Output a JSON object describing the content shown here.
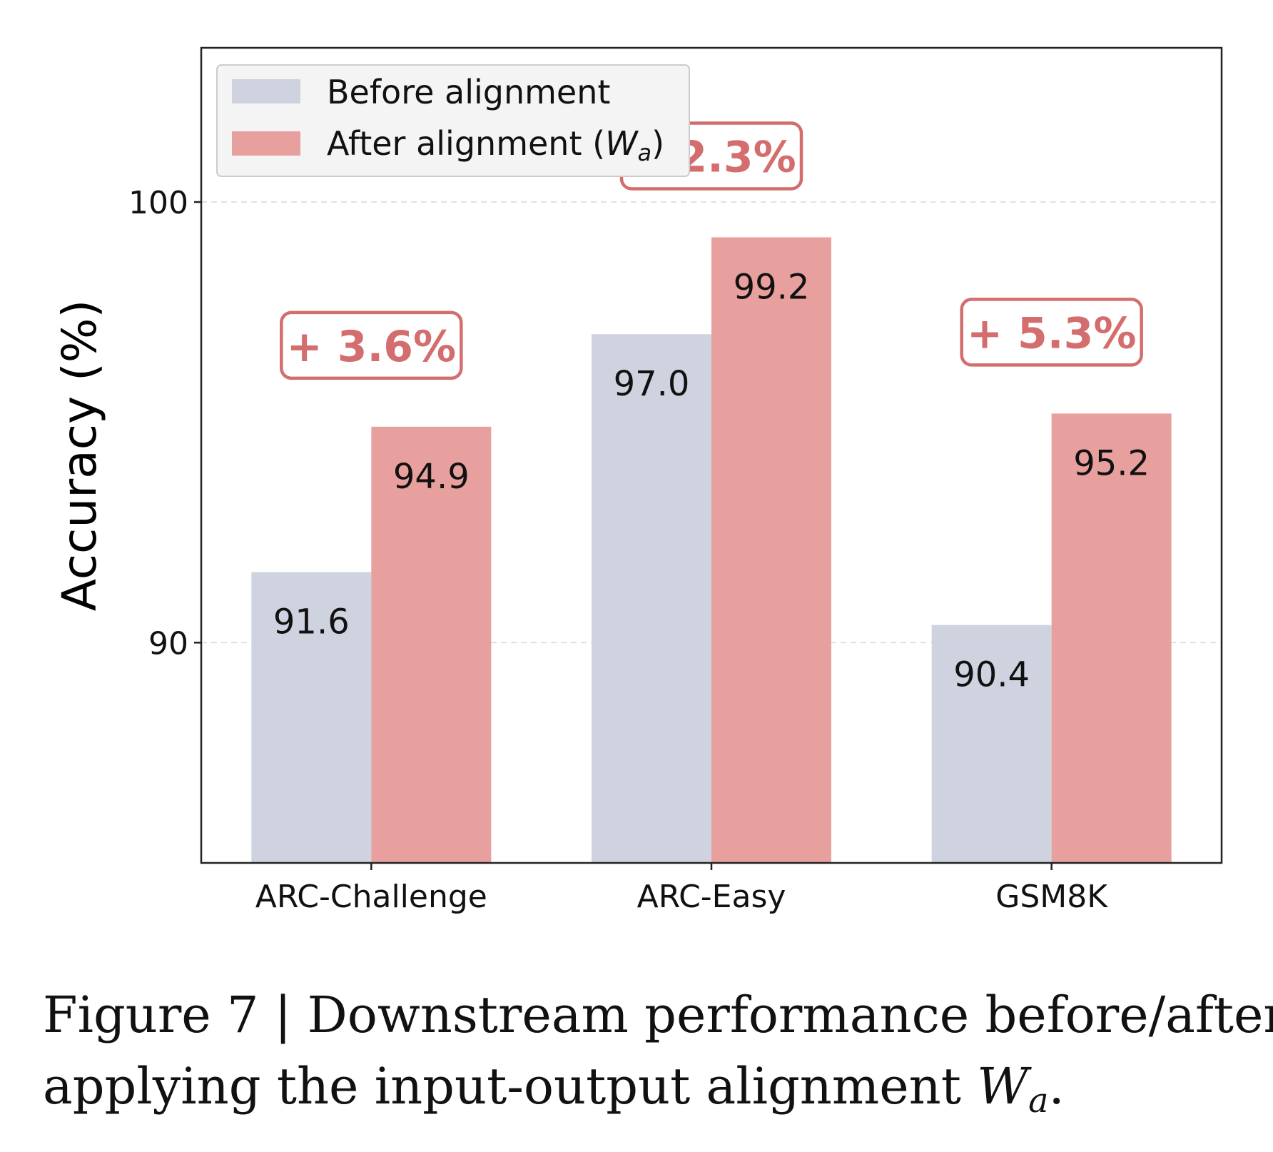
{
  "chart_data": {
    "type": "bar",
    "categories": [
      "ARC-Challenge",
      "ARC-Easy",
      "GSM8K"
    ],
    "series": [
      {
        "name": "Before alignment",
        "values": [
          91.6,
          97.0,
          90.4
        ],
        "color": "#cfd3df"
      },
      {
        "name": "After alignment (W_a)",
        "values": [
          94.9,
          99.2,
          95.2
        ],
        "color": "#e8a09e"
      }
    ],
    "legend_labels": {
      "before": "Before alignment",
      "after_prefix": "After alignment (",
      "after_var": "W",
      "after_sub": "a",
      "after_suffix": ")"
    },
    "value_labels": {
      "before": [
        "91.6",
        "97.0",
        "90.4"
      ],
      "after": [
        "94.9",
        "99.2",
        "95.2"
      ]
    },
    "gains": [
      "+ 3.6%",
      "+ 2.3%",
      "+ 5.3%"
    ],
    "gain_color": "#d46d6d",
    "ylabel": "Accuracy (%)",
    "xlabel": "",
    "ylim": [
      85,
      103.5
    ],
    "yticks": [
      90,
      100
    ],
    "ytick_labels": [
      "90",
      "100"
    ],
    "grid": "horizontal dashed",
    "legend_position": "upper-left"
  },
  "caption": {
    "line1": "Figure 7 | Downstream performance before/after",
    "line2_prefix": "applying the input-output alignment ",
    "var": "W",
    "var_sub": "a",
    "line2_suffix": "."
  }
}
